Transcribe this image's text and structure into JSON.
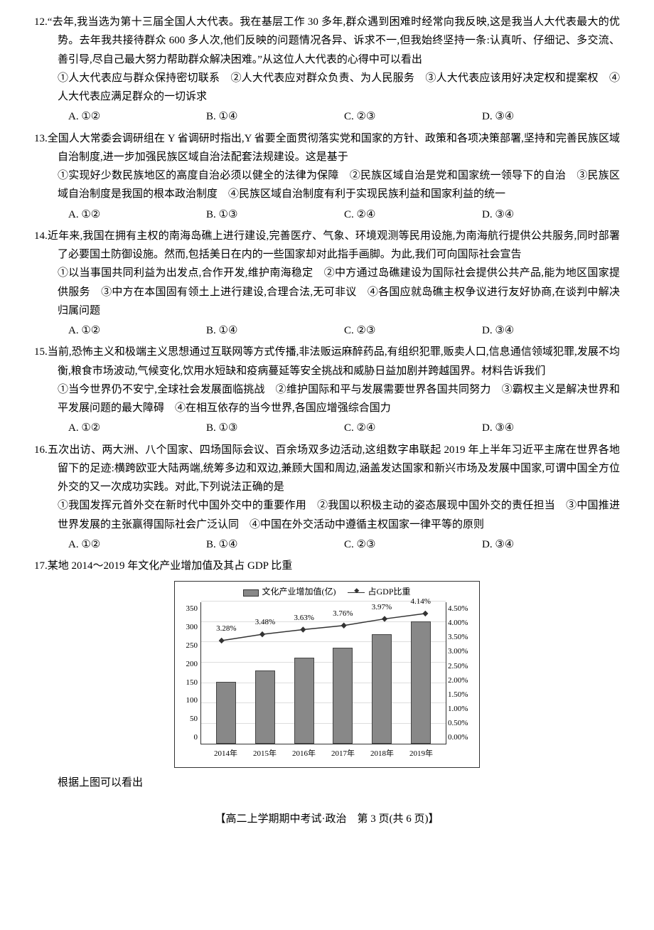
{
  "questions": [
    {
      "num": "12.",
      "stem": "“去年,我当选为第十三届全国人大代表。我在基层工作 30 多年,群众遇到困难时经常向我反映,这是我当人大代表最大的优势。去年我共接待群众 600 多人次,他们反映的问题情况各异、诉求不一,但我始终坚持一条:认真听、仔细记、多交流、善引导,尽自己最大努力帮助群众解决困难。”从这位人大代表的心得中可以看出",
      "sub": "①人大代表应与群众保持密切联系　②人大代表应对群众负责、为人民服务　③人大代表应该用好决定权和提案权　④人大代表应满足群众的一切诉求",
      "opts": [
        "A. ①②",
        "B. ①④",
        "C. ②③",
        "D. ③④"
      ]
    },
    {
      "num": "13.",
      "stem": "全国人大常委会调研组在 Y 省调研时指出,Y 省要全面贯彻落实党和国家的方针、政策和各项决策部署,坚持和完善民族区域自治制度,进一步加强民族区域自治法配套法规建设。这是基于",
      "sub": "①实现好少数民族地区的高度自治必须以健全的法律为保障　②民族区域自治是党和国家统一领导下的自治　③民族区域自治制度是我国的根本政治制度　④民族区域自治制度有利于实现民族利益和国家利益的统一",
      "opts": [
        "A. ①②",
        "B. ①③",
        "C. ②④",
        "D. ③④"
      ]
    },
    {
      "num": "14.",
      "stem": "近年来,我国在拥有主权的南海岛礁上进行建设,完善医疗、气象、环境观测等民用设施,为南海航行提供公共服务,同时部署了必要国土防御设施。然而,包括美日在内的一些国家却对此指手画脚。为此,我们可向国际社会宣告",
      "sub": "①以当事国共同利益为出发点,合作开发,维护南海稳定　②中方通过岛礁建设为国际社会提供公共产品,能为地区国家提供服务　③中方在本国固有领土上进行建设,合理合法,无可非议　④各国应就岛礁主权争议进行友好协商,在谈判中解决归属问题",
      "opts": [
        "A. ①②",
        "B. ①④",
        "C. ②③",
        "D. ③④"
      ]
    },
    {
      "num": "15.",
      "stem": "当前,恐怖主义和极端主义思想通过互联网等方式传播,非法贩运麻醉药品,有组织犯罪,贩卖人口,信息通信领域犯罪,发展不均衡,粮食市场波动,气候变化,饮用水短缺和疫病蔓延等安全挑战和威胁日益加剧并跨越国界。材料告诉我们",
      "sub": "①当今世界仍不安宁,全球社会发展面临挑战　②维护国际和平与发展需要世界各国共同努力　③霸权主义是解决世界和平发展问题的最大障碍　④在相互依存的当今世界,各国应增强综合国力",
      "opts": [
        "A. ①②",
        "B. ①③",
        "C. ②④",
        "D. ③④"
      ]
    },
    {
      "num": "16.",
      "stem": "五次出访、两大洲、八个国家、四场国际会议、百余场双多边活动,这组数字串联起 2019 年上半年习近平主席在世界各地留下的足迹:横跨欧亚大陆两端,统筹多边和双边,兼顾大国和周边,涵盖发达国家和新兴市场及发展中国家,可谓中国全方位外交的又一次成功实践。对此,下列说法正确的是",
      "sub": "①我国发挥元首外交在新时代中国外交中的重要作用　②我国以积极主动的姿态展现中国外交的责任担当　③中国推进世界发展的主张赢得国际社会广泛认同　④中国在外交活动中遵循主权国家一律平等的原则",
      "opts": [
        "A. ①②",
        "B. ①④",
        "C. ②③",
        "D. ③④"
      ]
    }
  ],
  "q17": {
    "num": "17.",
    "stem": "某地 2014～2019 年文化产业增加值及其占 GDP 比重",
    "after": "根据上图可以看出"
  },
  "chart": {
    "legend_bar": "文化产业增加值(亿)",
    "legend_line": "占GDP比重",
    "categories": [
      "2014年",
      "2015年",
      "2016年",
      "2017年",
      "2018年",
      "2019年"
    ],
    "bar_values": [
      152,
      180,
      213,
      237,
      270,
      302
    ],
    "bar_max": 350,
    "y_left_ticks": [
      "0",
      "50",
      "100",
      "150",
      "200",
      "250",
      "300",
      "350"
    ],
    "pct_labels": [
      "3.28%",
      "3.48%",
      "3.63%",
      "3.76%",
      "3.97%",
      "4.14%"
    ],
    "pct_values": [
      3.28,
      3.48,
      3.63,
      3.76,
      3.97,
      4.14
    ],
    "pct_max": 4.5,
    "y_right_ticks": [
      "0.00%",
      "0.50%",
      "1.00%",
      "1.50%",
      "2.00%",
      "2.50%",
      "3.00%",
      "3.50%",
      "4.00%",
      "4.50%"
    ],
    "bar_color": "#888888",
    "bar_border": "#444444",
    "line_color": "#333333",
    "grid_color": "#dddddd",
    "background": "#ffffff"
  },
  "footer": "【高二上学期期中考试·政治　第 3 页(共 6 页)】"
}
